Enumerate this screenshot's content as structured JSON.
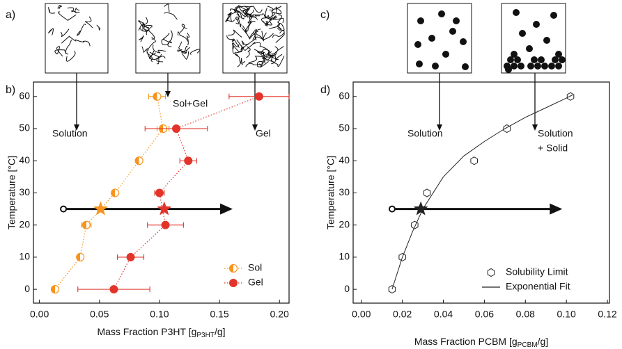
{
  "chart_data": [
    {
      "type": "scatter",
      "schematic_label": "a)",
      "panel_label": "b)",
      "x_label": "Mass Fraction P3HT [g",
      "x_label_sub": "P3HT",
      "x_label_end": "/g]",
      "y_label": "Temperature [°C]",
      "xlim": [
        -0.005,
        0.208
      ],
      "ylim": [
        -4.3,
        64.5
      ],
      "xticks": [
        {
          "value": 0,
          "label": "0.00"
        },
        0.05,
        {
          "value": 0.1,
          "label": "0.10"
        },
        0.15,
        {
          "value": 0.2,
          "label": "0.20"
        }
      ],
      "yticks": [
        0,
        10,
        20,
        30,
        40,
        50,
        60
      ],
      "legend": "lower right",
      "series": [
        {
          "name": "Sol",
          "color": "#f7941d",
          "marker": "half-circle",
          "line_style": "dotted",
          "x": [
            0.013,
            0.034,
            0.039,
            0.063,
            0.083,
            0.103,
            0.098
          ],
          "values": [
            0,
            10,
            20,
            30,
            40,
            50,
            60
          ],
          "xerr": [
            null,
            null,
            0.004,
            null,
            null,
            0.005,
            0.007
          ]
        },
        {
          "name": "Gel",
          "color": "#e2342a",
          "marker": "circle",
          "line_style": "dotted",
          "x": [
            0.062,
            0.076,
            0.105,
            0.1,
            0.124,
            0.114,
            0.183
          ],
          "values": [
            0,
            10,
            20,
            30,
            40,
            50,
            60
          ],
          "xerr": [
            0.03,
            0.011,
            0.015,
            0.004,
            0.007,
            0.026,
            0.025
          ]
        }
      ],
      "stars": [
        {
          "x": 0.051,
          "y": 25,
          "color": "#f7941d"
        },
        {
          "x": 0.104,
          "y": 25,
          "color": "#e2342a"
        }
      ],
      "arrow": {
        "x": [
          0.02,
          0.161
        ],
        "y": 25
      },
      "annotations": [
        "Solution",
        "Sol+Gel",
        "Gel"
      ]
    },
    {
      "type": "scatter",
      "schematic_label": "c)",
      "panel_label": "d)",
      "x_label": "Mass Fraction PCBM [g",
      "x_label_sub": "PCBM",
      "x_label_end": "/g]",
      "y_label": "Temperature [°C]",
      "xlim": [
        -0.004,
        0.121
      ],
      "ylim": [
        -4.3,
        64.5
      ],
      "xticks": [
        {
          "value": 0,
          "label": "0.00"
        },
        0.02,
        0.04,
        0.06,
        0.08,
        {
          "value": 0.1,
          "label": "0.10"
        },
        0.12
      ],
      "yticks": [
        0,
        10,
        20,
        30,
        40,
        50,
        60
      ],
      "legend": "lower right",
      "series": [
        {
          "name": "Solubility Limit",
          "color": "#222222",
          "marker": "hexagon",
          "line_style": "none",
          "x": [
            0.015,
            0.02,
            0.026,
            0.032,
            0.055,
            0.071,
            0.102
          ],
          "values": [
            0,
            10,
            20,
            30,
            40,
            50,
            60
          ]
        },
        {
          "name": "Exponential Fit",
          "color": "#222222",
          "marker": "none",
          "line_style": "solid",
          "x": [
            0.015,
            0.02,
            0.025,
            0.03,
            0.04,
            0.05,
            0.06,
            0.07,
            0.08,
            0.09,
            0.1,
            0.103
          ],
          "values": [
            0,
            10,
            18,
            25,
            35,
            41.5,
            46,
            50,
            53.5,
            56.5,
            59.5,
            60.5
          ]
        }
      ],
      "stars": [
        {
          "x": 0.029,
          "y": 25,
          "color": "#222222"
        }
      ],
      "arrow": {
        "x": [
          0.015,
          0.098
        ],
        "y": 25
      },
      "annotations": [
        "Solution",
        "Solution",
        "+ Solid"
      ]
    }
  ]
}
